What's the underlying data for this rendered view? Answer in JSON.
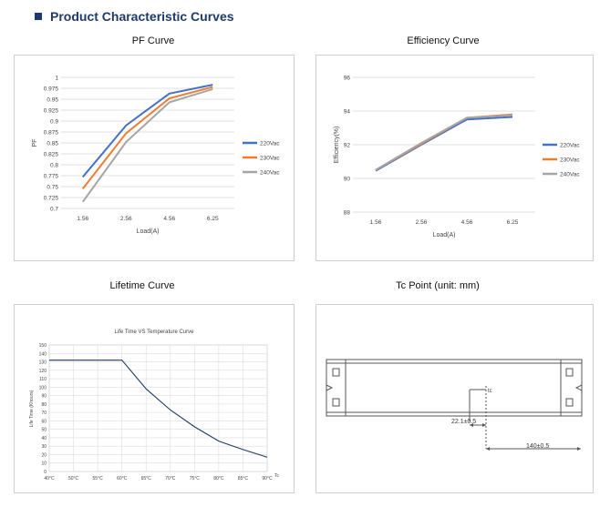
{
  "header": {
    "title": "Product Characteristic Curves"
  },
  "panels": {
    "pf": {
      "title": "PF Curve"
    },
    "efficiency": {
      "title": "Efficiency Curve"
    },
    "lifetime": {
      "title": "Lifetime Curve"
    },
    "tc": {
      "title": "Tc Point (unit: mm)"
    }
  },
  "colors": {
    "s220": "#4472c4",
    "s230": "#ed7d31",
    "s240": "#a5a5a5",
    "life": "#1f3a68"
  },
  "chart_data": [
    {
      "id": "pf",
      "type": "line",
      "title": "",
      "xlabel": "Load(A)",
      "ylabel": "PF",
      "categories": [
        "1.56",
        "2.56",
        "4.56",
        "6.25"
      ],
      "yticks": [
        "0.7",
        "0.725",
        "0.75",
        "0.775",
        "0.8",
        "0.825",
        "0.85",
        "0.875",
        "0.9",
        "0.925",
        "0.95",
        "0.975",
        "1"
      ],
      "ylim": [
        0.7,
        1.0
      ],
      "series": [
        {
          "name": "220Vac",
          "values": [
            0.772,
            0.89,
            0.963,
            0.983
          ]
        },
        {
          "name": "230Vac",
          "values": [
            0.745,
            0.872,
            0.952,
            0.978
          ]
        },
        {
          "name": "240Vac",
          "values": [
            0.715,
            0.852,
            0.943,
            0.973
          ]
        }
      ]
    },
    {
      "id": "eff",
      "type": "line",
      "title": "",
      "xlabel": "Load(A)",
      "ylabel": "Efficiency(%)",
      "categories": [
        "1.56",
        "2.56",
        "4.56",
        "6.25"
      ],
      "yticks": [
        "88",
        "90",
        "92",
        "94",
        "96"
      ],
      "ylim": [
        88,
        96
      ],
      "series": [
        {
          "name": "220Vac",
          "values": [
            90.45,
            92.0,
            93.5,
            93.65
          ]
        },
        {
          "name": "230Vac",
          "values": [
            90.5,
            92.05,
            93.6,
            93.8
          ]
        },
        {
          "name": "240Vac",
          "values": [
            90.5,
            92.1,
            93.6,
            93.75
          ]
        }
      ]
    },
    {
      "id": "life",
      "type": "line",
      "title": "Life Time VS Temperature Curve",
      "xlabel": "Tc",
      "ylabel": "Life Time (Khours)",
      "categories": [
        "40°C",
        "50°C",
        "55°C",
        "60°C",
        "65°C",
        "70°C",
        "75°C",
        "80°C",
        "85°C",
        "90°C"
      ],
      "yticks": [
        "0",
        "10",
        "20",
        "30",
        "40",
        "50",
        "60",
        "70",
        "80",
        "90",
        "100",
        "110",
        "120",
        "130",
        "140",
        "150"
      ],
      "ylim": [
        0,
        150
      ],
      "series": [
        {
          "name": "Life Time",
          "values": [
            132,
            132,
            132,
            132,
            98,
            73,
            53,
            36,
            26,
            17
          ]
        }
      ]
    }
  ],
  "tc_labels": {
    "point": "tc",
    "dim1": "22.1±0.5",
    "dim2": "140±0.5"
  }
}
